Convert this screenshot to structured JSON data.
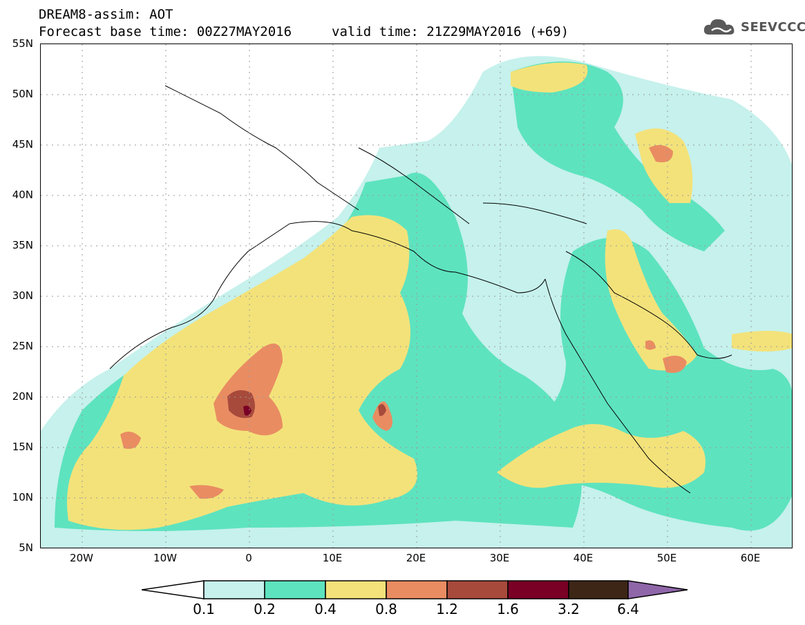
{
  "header": {
    "title": "DREAM8-assim: AOT",
    "forecast_base": "Forecast base time: 00Z27MAY2016",
    "valid_time": "valid time: 21Z29MAY2016 (+69)"
  },
  "logo": {
    "text": "SEEVCCC",
    "icon": "cloud-icon"
  },
  "map": {
    "projection": "lat-lon",
    "lon_range": [
      -25,
      65
    ],
    "lat_range": [
      5,
      55
    ],
    "lat_labels": [
      "55N",
      "50N",
      "45N",
      "40N",
      "35N",
      "30N",
      "25N",
      "20N",
      "15N",
      "10N",
      "5N"
    ],
    "lon_labels": [
      "20W",
      "10W",
      "0",
      "10E",
      "20E",
      "30E",
      "40E",
      "50E",
      "60E"
    ]
  },
  "colorbar": {
    "labels": [
      "0.1",
      "0.2",
      "0.4",
      "0.8",
      "1.2",
      "1.6",
      "3.2",
      "6.4"
    ],
    "colors": [
      "#ffffff",
      "#c6f1ec",
      "#5ee3bf",
      "#f3e27a",
      "#e98c62",
      "#a74a3c",
      "#7a0026",
      "#3d2616",
      "#8f66a8"
    ]
  },
  "colors": {
    "level1": "#c6f1ec",
    "level2": "#5ee3bf",
    "level3": "#f3e27a",
    "level4": "#e98c62",
    "level5": "#a74a3c",
    "level6": "#7a0026"
  }
}
